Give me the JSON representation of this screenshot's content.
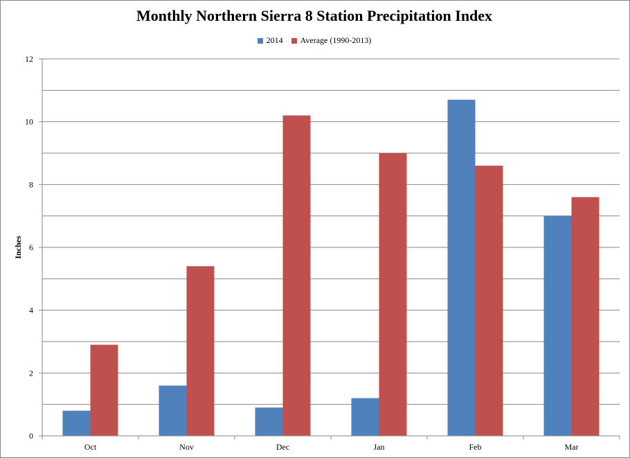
{
  "chart_data": {
    "type": "bar",
    "title": "Monthly Northern Sierra 8 Station Precipitation Index",
    "xlabel": "",
    "ylabel": "Inches",
    "ylim": [
      0,
      12
    ],
    "yticks": [
      0,
      2,
      4,
      6,
      8,
      10,
      12
    ],
    "categories": [
      "Oct",
      "Nov",
      "Dec",
      "Jan",
      "Feb",
      "Mar"
    ],
    "series": [
      {
        "name": "2014",
        "color": "#4F81BD",
        "values": [
          0.8,
          1.6,
          0.9,
          1.2,
          10.7,
          7.0
        ]
      },
      {
        "name": "Average (1990-2013)",
        "color": "#C0504D",
        "values": [
          2.9,
          5.4,
          10.2,
          9.0,
          8.6,
          7.6
        ]
      }
    ],
    "grid": true,
    "legend": "top-center"
  }
}
